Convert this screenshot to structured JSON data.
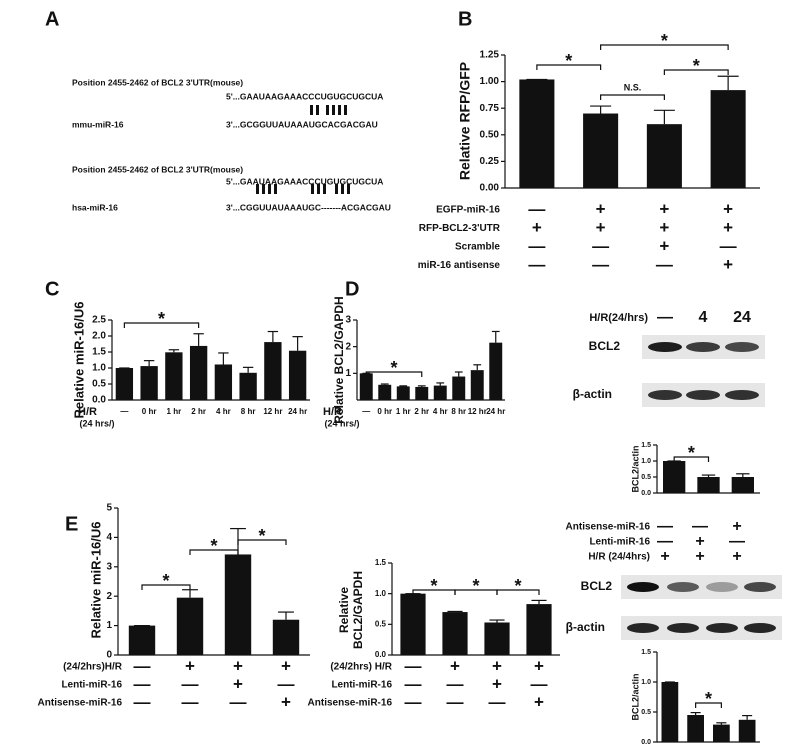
{
  "panels": [
    "A",
    "B",
    "C",
    "D",
    "E"
  ],
  "sequences": [
    {
      "title": "Position 2455-2462 of BCL2 3'UTR(mouse)",
      "target": "5'...GAAUAAGAAACCCUGUGCUGCUA",
      "name": "mmu-miR-16",
      "mirna": "3'...GCGGUUAUAAAUGCACGACGAU"
    },
    {
      "title": "Position 2455-2462 of BCL2 3'UTR(mouse)",
      "target": "5'...GAAUAAGAAACCCUGUGCUGCUA",
      "name": "hsa-miR-16",
      "mirna": "3'...CGGUUAUAAAUGC-------ACGACGAU"
    }
  ],
  "blots": [
    {
      "header": "H/R(24/hrs)",
      "lanes": [
        "—",
        "4",
        "24"
      ],
      "bands": [
        "BCL2",
        "β-actin"
      ]
    },
    {
      "conditions": [
        {
          "label": "Antisense-miR-16",
          "marks": [
            "—",
            "—",
            "+"
          ]
        },
        {
          "label": "Lenti-miR-16",
          "marks": [
            "—",
            "+",
            "—"
          ]
        },
        {
          "label": "H/R (24/4hrs)",
          "marks": [
            "+",
            "+",
            "+"
          ]
        }
      ],
      "bands": [
        "BCL2",
        "β-actin"
      ]
    }
  ],
  "chart_data": [
    {
      "type": "bar",
      "ylabel": [
        "Relative RFP/GFP"
      ],
      "color": "#111111",
      "values": [
        1.02,
        0.7,
        0.6,
        0.92
      ],
      "errors": [
        0,
        0.07,
        0.13,
        0.13
      ],
      "ylim": [
        0,
        1.25
      ],
      "yticks": [
        {
          "value": 0,
          "label": "0.00"
        },
        0.25,
        {
          "value": 0.5,
          "label": "0.50"
        },
        0.75,
        {
          "value": 1,
          "label": "1.00"
        },
        1.25
      ],
      "brackets": [
        {
          "label": "*",
          "span": [
            0,
            1
          ]
        },
        {
          "label": "*",
          "span": [
            1,
            3
          ]
        },
        {
          "label": "N.S.",
          "span": [
            1,
            2
          ]
        },
        {
          "label": "*",
          "span": [
            2,
            3
          ]
        }
      ],
      "conditions": [
        {
          "label": "EGFP-miR-16",
          "marks": [
            "—",
            "+",
            "+",
            "+"
          ]
        },
        {
          "label": "RFP-BCL2-3'UTR",
          "marks": [
            "+",
            "+",
            "+",
            "+"
          ]
        },
        {
          "label": "Scramble",
          "marks": [
            "—",
            "—",
            "+",
            "—"
          ]
        },
        {
          "label": "miR-16 antisense",
          "marks": [
            "—",
            "—",
            "—",
            "+"
          ]
        }
      ]
    },
    {
      "type": "bar",
      "ylabel": [
        "Relative miR-16/U6"
      ],
      "color": "#111111",
      "categories": [
        "—",
        "0 hr",
        "1 hr",
        "2 hr",
        "4 hr",
        "8 hr",
        "12 hr",
        "24 hr"
      ],
      "xlabel": [
        "H/R",
        "(24 hrs/)"
      ],
      "values": [
        1.0,
        1.06,
        1.49,
        1.69,
        1.11,
        0.85,
        1.81,
        1.54
      ],
      "errors": [
        0,
        0.17,
        0.08,
        0.38,
        0.36,
        0.17,
        0.33,
        0.44
      ],
      "ylim": [
        0,
        2.5
      ],
      "yticks": [
        {
          "value": 0,
          "label": "0.0"
        },
        0.5,
        {
          "value": 1,
          "label": "1.0"
        },
        1.5,
        {
          "value": 2,
          "label": "2.0"
        },
        2.5
      ],
      "brackets": [
        {
          "label": "*",
          "span": [
            0,
            3
          ]
        }
      ]
    },
    {
      "type": "bar",
      "ylabel": [
        "Relative BCL2/GAPDH"
      ],
      "color": "#111111",
      "categories": [
        "—",
        "0 hr",
        "1 hr",
        "2 hr",
        "4 hr",
        "8 hr",
        "12 hr",
        "24 hr"
      ],
      "xlabel": [
        "H/R",
        "(24 hrs/)"
      ],
      "values": [
        1.0,
        0.57,
        0.51,
        0.49,
        0.54,
        0.88,
        1.12,
        2.15
      ],
      "errors": [
        0,
        0.03,
        0.02,
        0.04,
        0.1,
        0.17,
        0.2,
        0.42
      ],
      "ylim": [
        0,
        3
      ],
      "yticks": [
        1,
        2,
        3
      ],
      "brackets": [
        {
          "label": "*",
          "span": [
            0,
            3
          ]
        }
      ]
    },
    {
      "type": "bar",
      "ylabel": [
        "BCL2/actin"
      ],
      "color": "#111111",
      "values": [
        1.0,
        0.5,
        0.5
      ],
      "errors": [
        0,
        0.06,
        0.1
      ],
      "ylim": [
        0,
        1.5
      ],
      "yticks": [
        {
          "value": 0,
          "label": "0.0"
        },
        0.5,
        {
          "value": 1,
          "label": "1.0"
        },
        1.5
      ],
      "brackets": [
        {
          "label": "*",
          "span": [
            0,
            1
          ]
        }
      ]
    },
    {
      "type": "bar",
      "ylabel": [
        "Relative miR-16/U6"
      ],
      "color": "#111111",
      "values": [
        1.0,
        1.95,
        3.42,
        1.2
      ],
      "errors": [
        0,
        0.27,
        0.88,
        0.26
      ],
      "ylim": [
        0,
        5
      ],
      "yticks": [
        0,
        1,
        2,
        3,
        4,
        5
      ],
      "brackets": [
        {
          "label": "*",
          "span": [
            0,
            1
          ]
        },
        {
          "label": "*",
          "span": [
            1,
            2
          ]
        },
        {
          "label": "*",
          "span": [
            2,
            3
          ]
        }
      ],
      "conditions": [
        {
          "label": "(24/2hrs)H/R",
          "marks": [
            "—",
            "+",
            "+",
            "+"
          ]
        },
        {
          "label": "Lenti-miR-16",
          "marks": [
            "—",
            "—",
            "+",
            "—"
          ]
        },
        {
          "label": "Antisense-miR-16",
          "marks": [
            "—",
            "—",
            "—",
            "+"
          ]
        }
      ]
    },
    {
      "type": "bar",
      "ylabel": [
        "Relative",
        "BCL2/GAPDH"
      ],
      "color": "#111111",
      "values": [
        1.0,
        0.7,
        0.53,
        0.83
      ],
      "errors": [
        0,
        0.01,
        0.04,
        0.06
      ],
      "ylim": [
        0,
        1.5
      ],
      "yticks": [
        {
          "value": 0,
          "label": "0.0"
        },
        0.5,
        {
          "value": 1,
          "label": "1.0"
        },
        1.5
      ],
      "brackets": [
        {
          "label": "*",
          "span": [
            0,
            1
          ]
        },
        {
          "label": "*",
          "span": [
            1,
            2
          ]
        },
        {
          "label": "*",
          "span": [
            2,
            3
          ]
        }
      ],
      "conditions": [
        {
          "label": "(24/2hrs) H/R",
          "marks": [
            "—",
            "+",
            "+",
            "+"
          ]
        },
        {
          "label": "Lenti-miR-16",
          "marks": [
            "—",
            "—",
            "+",
            "—"
          ]
        },
        {
          "label": "Antisense-miR-16",
          "marks": [
            "—",
            "—",
            "—",
            "+"
          ]
        }
      ]
    },
    {
      "type": "bar",
      "ylabel": [
        "BCL2/actin"
      ],
      "color": "#111111",
      "values": [
        1.0,
        0.45,
        0.29,
        0.37
      ],
      "errors": [
        0,
        0.04,
        0.03,
        0.07
      ],
      "ylim": [
        0,
        1.5
      ],
      "yticks": [
        {
          "value": 0,
          "label": "0.0"
        },
        0.5,
        {
          "value": 1,
          "label": "1.0"
        },
        1.5
      ],
      "brackets": [
        {
          "label": "*",
          "span": [
            1,
            2
          ]
        }
      ]
    }
  ]
}
